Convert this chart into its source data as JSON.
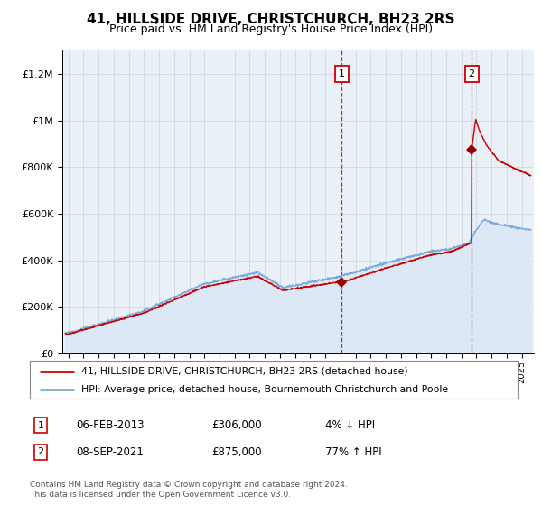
{
  "title": "41, HILLSIDE DRIVE, CHRISTCHURCH, BH23 2RS",
  "subtitle": "Price paid vs. HM Land Registry's House Price Index (HPI)",
  "legend_line1": "41, HILLSIDE DRIVE, CHRISTCHURCH, BH23 2RS (detached house)",
  "legend_line2": "HPI: Average price, detached house, Bournemouth Christchurch and Poole",
  "annotation1_date": "06-FEB-2013",
  "annotation1_price": "£306,000",
  "annotation1_pct": "4% ↓ HPI",
  "annotation1_year": 2013.096,
  "annotation1_price_val": 306000,
  "annotation2_date": "08-SEP-2021",
  "annotation2_price": "£875,000",
  "annotation2_pct": "77% ↑ HPI",
  "annotation2_year": 2021.685,
  "annotation2_price_val": 875000,
  "footer": "Contains HM Land Registry data © Crown copyright and database right 2024.\nThis data is licensed under the Open Government Licence v3.0.",
  "hpi_color": "#7aabdc",
  "hpi_fill_color": "#dce8f5",
  "sale_color": "#cc0000",
  "marker_color": "#990000",
  "vline_color": "#cc0000",
  "plot_bg": "#eaf0f8",
  "grid_color": "#c8d4e0",
  "ann_box_color": "#cc0000",
  "ylim_max": 1300000,
  "xlim_min": 1994.6,
  "xlim_max": 2025.8,
  "title_fontsize": 11,
  "subtitle_fontsize": 9
}
